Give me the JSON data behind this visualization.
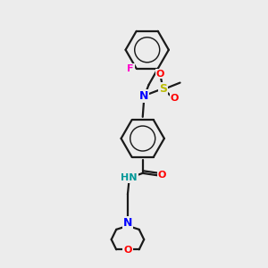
{
  "bg_color": "#ececec",
  "bond_color": "#1a1a1a",
  "line_width": 1.6,
  "atom_colors": {
    "N": "#0000ff",
    "O": "#ff0000",
    "F": "#ff00cc",
    "S": "#bbbb00",
    "C": "#1a1a1a",
    "H": "#888888",
    "HN": "#009999"
  },
  "figsize": [
    3.0,
    3.0
  ],
  "dpi": 100
}
